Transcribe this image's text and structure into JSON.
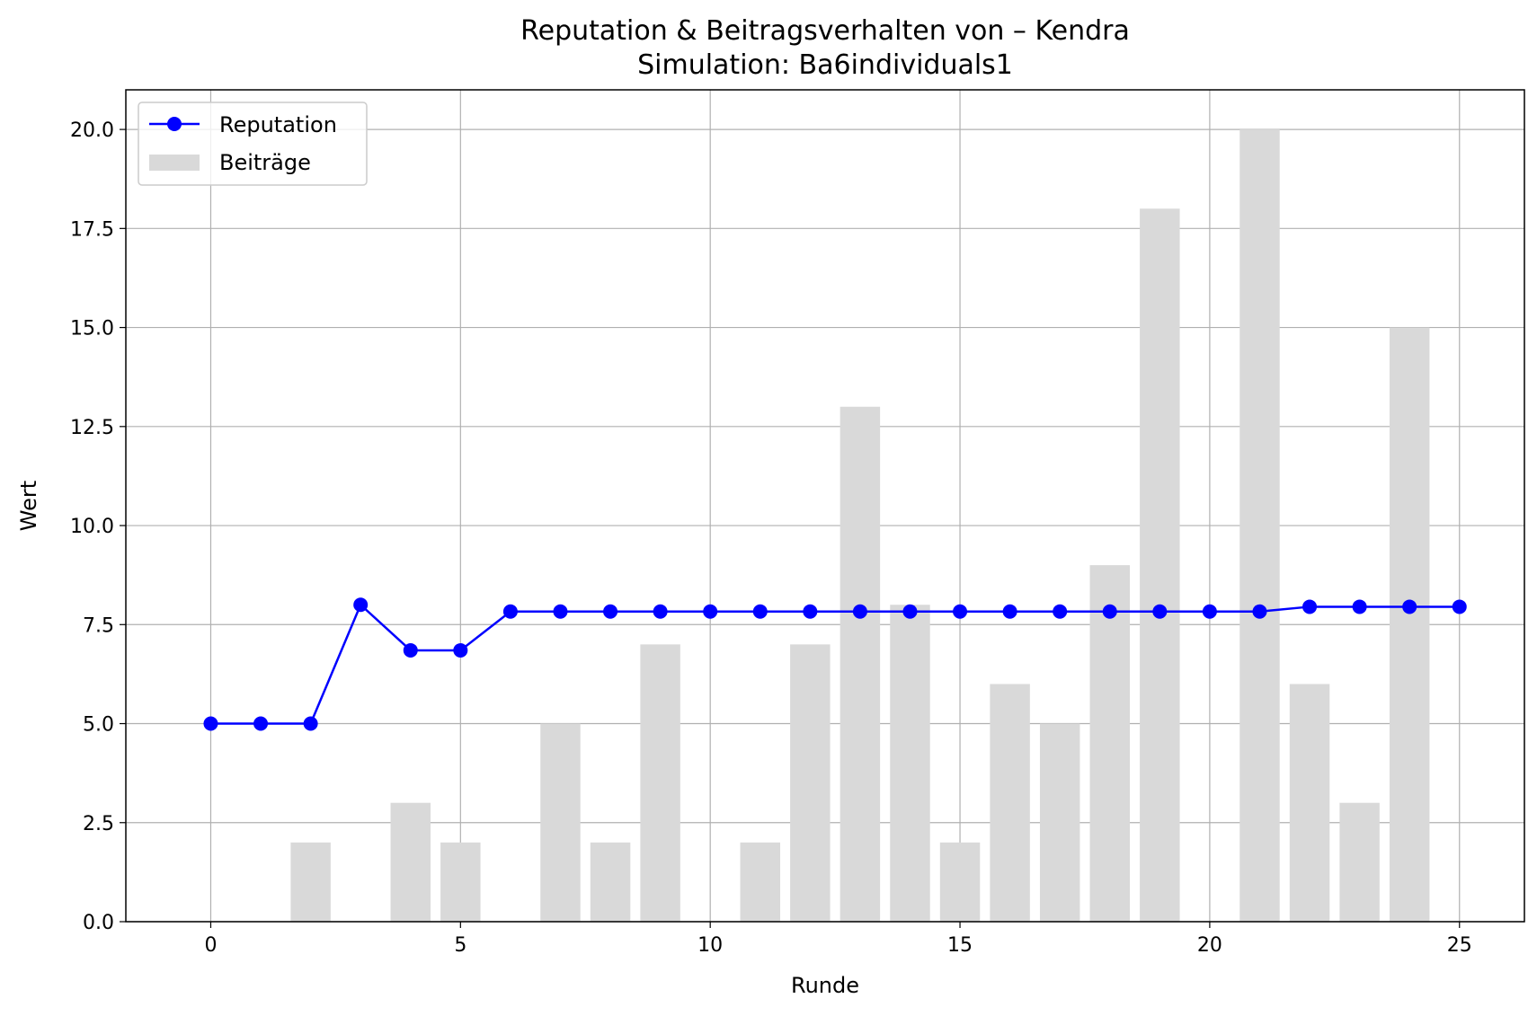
{
  "chart_data": {
    "type": "bar+line",
    "title": "Reputation & Beitragsverhalten von – Kendra",
    "subtitle": "Simulation: Ba6individuals1",
    "xlabel": "Runde",
    "ylabel": "Wert",
    "xlim": [
      -1.7,
      26.3
    ],
    "ylim": [
      0,
      21
    ],
    "x_ticks": [
      0,
      5,
      10,
      15,
      20,
      25
    ],
    "y_ticks": [
      0.0,
      2.5,
      5.0,
      7.5,
      10.0,
      12.5,
      15.0,
      17.5,
      20.0
    ],
    "grid": true,
    "legend_position": "top-left",
    "series": [
      {
        "name": "Reputation",
        "kind": "line",
        "color": "#0000ff",
        "marker": "circle",
        "x": [
          0,
          1,
          2,
          3,
          4,
          5,
          6,
          7,
          8,
          9,
          10,
          11,
          12,
          13,
          14,
          15,
          16,
          17,
          18,
          19,
          20,
          21,
          22,
          23,
          24,
          25
        ],
        "values": [
          5.0,
          5.0,
          5.0,
          8.0,
          6.85,
          6.85,
          7.83,
          7.83,
          7.83,
          7.83,
          7.83,
          7.83,
          7.83,
          7.83,
          7.83,
          7.83,
          7.83,
          7.83,
          7.83,
          7.83,
          7.83,
          7.83,
          7.95,
          7.95,
          7.95,
          7.95
        ]
      },
      {
        "name": "Beiträge",
        "kind": "bar",
        "color": "#d9d9d9",
        "x": [
          0,
          1,
          2,
          3,
          4,
          5,
          6,
          7,
          8,
          9,
          10,
          11,
          12,
          13,
          14,
          15,
          16,
          17,
          18,
          19,
          20,
          21,
          22,
          23,
          24
        ],
        "values": [
          0,
          0,
          2,
          0,
          3,
          2,
          0,
          5,
          2,
          7,
          0,
          2,
          7,
          13,
          8,
          2,
          6,
          5,
          9,
          18,
          0,
          20,
          6,
          3,
          15
        ]
      }
    ]
  }
}
